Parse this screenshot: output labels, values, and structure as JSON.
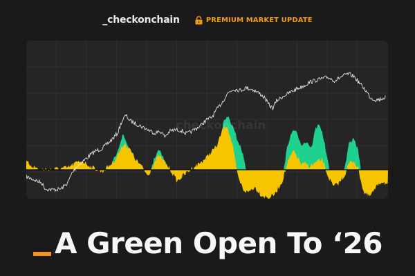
{
  "brand": {
    "logo": "_checkonchain",
    "badge_label": "PREMIUM MARKET UPDATE",
    "badge_icon": "lock-icon"
  },
  "chart": {
    "watermark": "_checkonchain",
    "colors": {
      "background": "#252526",
      "price_line": "#e6e6e6",
      "positive_fill": "#1fd18f",
      "oscillator_fill": "#f7c400",
      "zero_line": "#000000"
    }
  },
  "headline": {
    "text": "A Green Open To ‘26",
    "accent_color": "#f7941d"
  }
}
